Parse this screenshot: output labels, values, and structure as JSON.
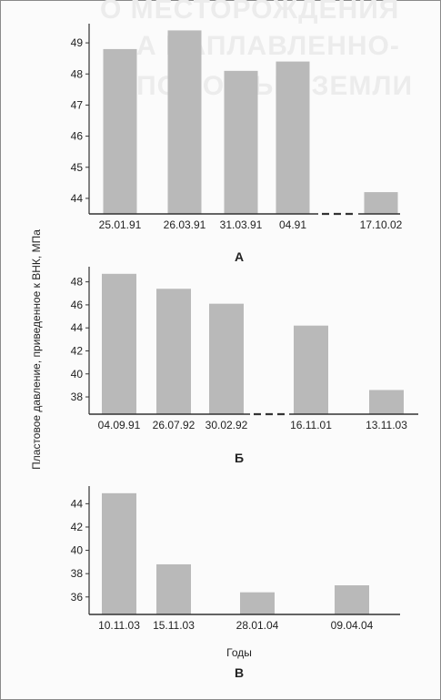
{
  "ylabel": "Пластовое давление, приведенное к ВНК, МПа",
  "xlabel": "Годы",
  "colors": {
    "bar": "#b9b9b9",
    "axis": "#333333",
    "text": "#222222"
  },
  "chart_data": [
    {
      "type": "bar",
      "panel_label": "А",
      "categories": [
        "25.01.91",
        "26.03.91",
        "31.03.91",
        "04.91",
        "17.10.02"
      ],
      "values": [
        48.8,
        49.4,
        48.1,
        48.4,
        44.2
      ],
      "ylim": [
        43.5,
        49.5
      ],
      "yticks": [
        44,
        45,
        46,
        47,
        48,
        49
      ],
      "axis_break_after_index": 3
    },
    {
      "type": "bar",
      "panel_label": "Б",
      "categories": [
        "04.09.91",
        "26.07.92",
        "30.02.92",
        "16.11.01",
        "13.11.03"
      ],
      "values": [
        48.7,
        47.4,
        46.1,
        44.2,
        38.6
      ],
      "ylim": [
        36.5,
        49
      ],
      "yticks": [
        38,
        40,
        42,
        44,
        46,
        48
      ],
      "axis_break_after_index": 2
    },
    {
      "type": "bar",
      "panel_label": "В",
      "categories": [
        "10.11.03",
        "15.11.03",
        "28.01.04",
        "09.04.04"
      ],
      "values": [
        44.9,
        38.8,
        36.4,
        37.0
      ],
      "ylim": [
        34.5,
        45.2
      ],
      "yticks": [
        36,
        38,
        40,
        42,
        44
      ]
    }
  ]
}
